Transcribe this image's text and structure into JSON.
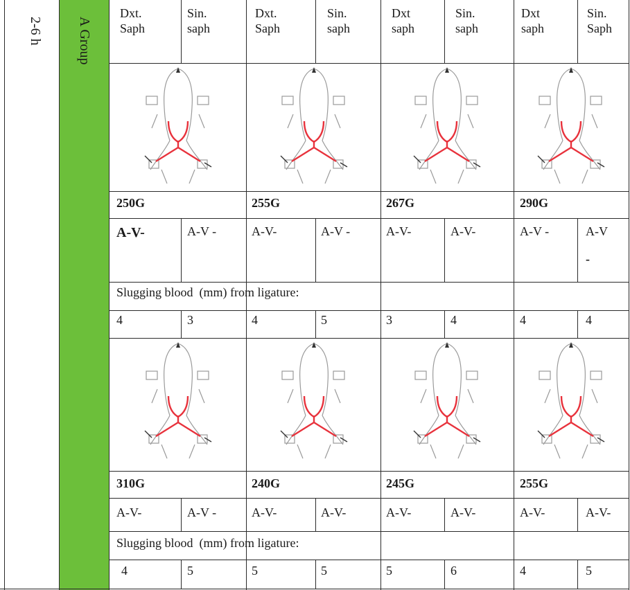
{
  "time_label": "2-6 h",
  "group_label": "A Group",
  "headers": [
    [
      "Dxt.",
      "Saph"
    ],
    [
      "Sin.",
      "saph"
    ],
    [
      "Dxt.",
      "Saph"
    ],
    [
      "Sin.",
      "saph"
    ],
    [
      "Dxt",
      "saph"
    ],
    [
      "Sin.",
      "saph"
    ],
    [
      "Dxt",
      "saph"
    ],
    [
      "Sin.",
      "Saph"
    ]
  ],
  "block1": {
    "weights": [
      "250G",
      "255G",
      "267G",
      "290G"
    ],
    "av": [
      "A-V-",
      "A-V -",
      "A-V-",
      "A-V -",
      "A-V-",
      "A-V-",
      "A-V -",
      "A-V"
    ],
    "av_extra": "-",
    "slugging_label": "Slugging blood  (mm) from ligature:",
    "slugging": [
      "4",
      "3",
      "4",
      "5",
      "3",
      "4",
      "4",
      "4"
    ]
  },
  "block2": {
    "weights": [
      "310G",
      "240G",
      "245G",
      "255G"
    ],
    "av": [
      "A-V-",
      "A-V -",
      "A-V-",
      "A-V-",
      "A-V-",
      "A-V-",
      "A-V-",
      "A-V-"
    ],
    "slugging_label": "Slugging blood  (mm) from ligature:",
    "slugging": [
      "4",
      "5",
      "5",
      "5",
      "5",
      "6",
      "4",
      "5"
    ]
  },
  "colors": {
    "group_band": "#6cbf3a",
    "vessel": "#e8323c"
  }
}
